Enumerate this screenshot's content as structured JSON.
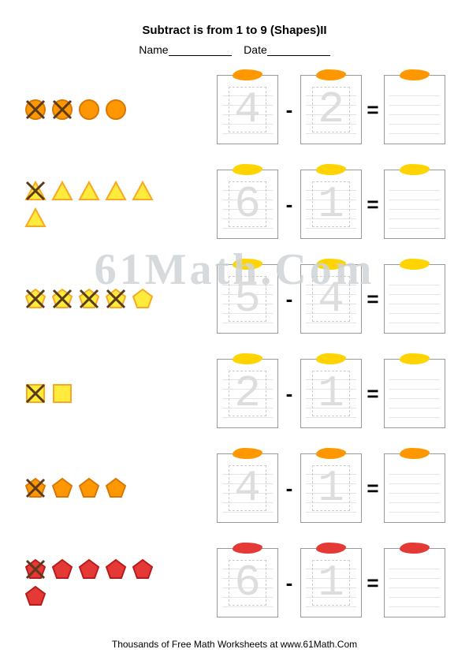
{
  "title": "Subtract is from 1 to 9 (Shapes)II",
  "name_label": "Name",
  "date_label": "Date",
  "watermark": "61Math.Com",
  "footer": "Thousands of Free Math Worksheets at www.61Math.Com",
  "colors": {
    "orange_fill": "#ff9800",
    "orange_stroke": "#d97706",
    "yellow_fill": "#ffeb3b",
    "yellow_stroke": "#f9a825",
    "red_fill": "#e53935",
    "red_stroke": "#b71c1c",
    "cross": "#5a3a1a"
  },
  "problems": [
    {
      "shape": "circle",
      "color": "orange",
      "total": 4,
      "crossed": 2,
      "minuend": "4",
      "subtrahend": "2",
      "scribble": "orange"
    },
    {
      "shape": "triangle",
      "color": "yellow",
      "total": 6,
      "crossed": 1,
      "minuend": "6",
      "subtrahend": "1",
      "scribble": "yellow"
    },
    {
      "shape": "pentagon",
      "color": "yellow",
      "total": 5,
      "crossed": 4,
      "minuend": "5",
      "subtrahend": "4",
      "scribble": "yellow"
    },
    {
      "shape": "square",
      "color": "yellow",
      "total": 2,
      "crossed": 1,
      "minuend": "2",
      "subtrahend": "1",
      "scribble": "yellow"
    },
    {
      "shape": "pentagon",
      "color": "orange",
      "total": 4,
      "crossed": 1,
      "minuend": "4",
      "subtrahend": "1",
      "scribble": "orange"
    },
    {
      "shape": "pentagon",
      "color": "red",
      "total": 6,
      "crossed": 1,
      "minuend": "6",
      "subtrahend": "1",
      "scribble": "red"
    }
  ],
  "minus": "-",
  "equals": "="
}
